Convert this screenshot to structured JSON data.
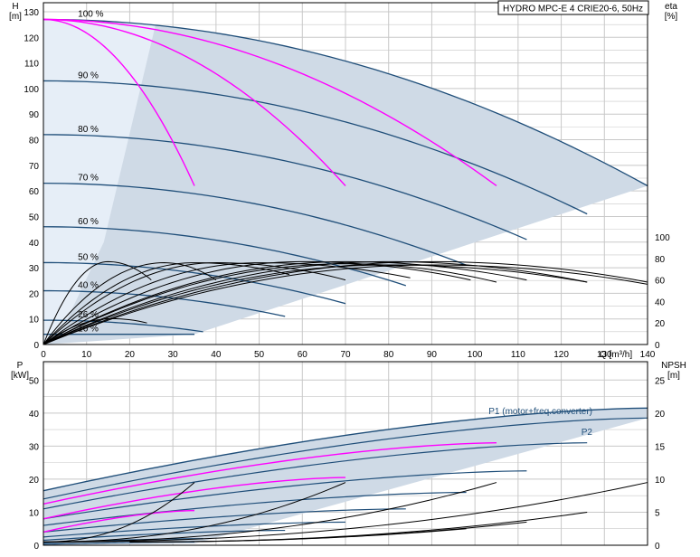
{
  "chart_data": {
    "type": "line",
    "title": "HYDRO MPC-E 4 CRIE20-6, 50Hz",
    "colors": {
      "envelope_fill": "#cfdae6",
      "envelope_fill_light": "#e6eef7",
      "curve": "#1f4e79",
      "highlight": "#ff00ff",
      "eta": "#000000",
      "grid": "#c8c8c8",
      "label_blue": "#1f4e79"
    },
    "top": {
      "xlabel": "Q [m³/h]",
      "ylabel_left_name": "H",
      "ylabel_left_unit": "[m]",
      "ylabel_right_name": "eta",
      "ylabel_right_unit": "[%]",
      "xlim": [
        0,
        140
      ],
      "ylim": [
        0,
        130
      ],
      "eta_lim": [
        0,
        100
      ],
      "x_ticks": [
        0,
        10,
        20,
        30,
        40,
        50,
        60,
        70,
        80,
        90,
        100,
        110,
        120,
        130,
        140
      ],
      "y_ticks": [
        0,
        10,
        20,
        30,
        40,
        50,
        60,
        70,
        80,
        90,
        100,
        110,
        120,
        130
      ],
      "eta_ticks": [
        0,
        20,
        40,
        60,
        80,
        100
      ],
      "speed_labels": [
        {
          "text": "100 %",
          "q": 8,
          "h": 127
        },
        {
          "text": "90 %",
          "q": 8,
          "h": 103
        },
        {
          "text": "80 %",
          "q": 8,
          "h": 82
        },
        {
          "text": "70 %",
          "q": 8,
          "h": 63
        },
        {
          "text": "60 %",
          "q": 8,
          "h": 46
        },
        {
          "text": "50 %",
          "q": 8,
          "h": 32
        },
        {
          "text": "40 %",
          "q": 8,
          "h": 21
        },
        {
          "text": "26 %",
          "q": 8,
          "h": 9.5
        },
        {
          "text": "16 %",
          "q": 8,
          "h": 4
        }
      ],
      "envelope": {
        "shutoff_head": 127,
        "max_speed_end": [
          140,
          62
        ],
        "min_speed_end": [
          35,
          4
        ]
      },
      "speed_curves": [
        {
          "pct": 100,
          "q_end": 140,
          "h0": 127,
          "h_end": 62
        },
        {
          "pct": 90,
          "q_end": 126,
          "h0": 103,
          "h_end": 51
        },
        {
          "pct": 80,
          "q_end": 112,
          "h0": 82,
          "h_end": 41
        },
        {
          "pct": 70,
          "q_end": 98,
          "h0": 63,
          "h_end": 31
        },
        {
          "pct": 60,
          "q_end": 84,
          "h0": 46,
          "h_end": 23
        },
        {
          "pct": 50,
          "q_end": 70,
          "h0": 32,
          "h_end": 16
        },
        {
          "pct": 40,
          "q_end": 56,
          "h0": 21,
          "h_end": 11
        },
        {
          "pct": 26,
          "q_end": 37,
          "h0": 9.5,
          "h_end": 5
        },
        {
          "pct": 16,
          "q_end": 35,
          "h0": 4,
          "h_end": 4
        }
      ],
      "single_pump_curves": [
        {
          "q_end": 35,
          "h_end": 62
        },
        {
          "q_end": 70,
          "h_end": 62
        },
        {
          "q_end": 105,
          "h_end": 62
        }
      ],
      "eta_curves": [
        {
          "q_end": 25,
          "peak_q": 15,
          "peak_eta": 77,
          "end_eta": 60
        },
        {
          "q_end": 40,
          "peak_q": 28,
          "peak_eta": 76,
          "end_eta": 60
        },
        {
          "q_end": 57,
          "peak_q": 35,
          "peak_eta": 76,
          "end_eta": 65
        },
        {
          "q_end": 70,
          "peak_q": 40,
          "peak_eta": 76,
          "end_eta": 60
        },
        {
          "q_end": 85,
          "peak_q": 50,
          "peak_eta": 76,
          "end_eta": 62
        },
        {
          "q_end": 99,
          "peak_q": 60,
          "peak_eta": 77,
          "end_eta": 60
        },
        {
          "q_end": 112,
          "peak_q": 70,
          "peak_eta": 77,
          "end_eta": 60
        },
        {
          "q_end": 126,
          "peak_q": 80,
          "peak_eta": 77,
          "end_eta": 58
        },
        {
          "q_end": 140,
          "peak_q": 90,
          "peak_eta": 77,
          "end_eta": 58
        },
        {
          "q_end": 140,
          "peak_q": 90,
          "peak_eta": 74,
          "end_eta": 56
        },
        {
          "q_end": 126,
          "peak_q": 80,
          "peak_eta": 74,
          "end_eta": 58
        },
        {
          "q_end": 105,
          "peak_q": 70,
          "peak_eta": 75,
          "end_eta": 58
        },
        {
          "q_end": 24,
          "peak_q": 16,
          "peak_eta": 24,
          "end_eta": 20
        }
      ]
    },
    "bottom": {
      "ylabel_left_name": "P",
      "ylabel_left_unit": "[kW]",
      "ylabel_right_name": "NPSH",
      "ylabel_right_unit": "[m]",
      "xlim": [
        0,
        140
      ],
      "ylim": [
        0,
        55
      ],
      "npsh_lim": [
        0,
        27.5
      ],
      "y_ticks": [
        0,
        10,
        20,
        30,
        40,
        50
      ],
      "npsh_ticks": [
        0,
        5,
        10,
        15,
        20,
        25
      ],
      "series_labels": [
        {
          "text": "P1 (motor+freq.converter)",
          "q": 140,
          "p": 43
        },
        {
          "text": "P2",
          "q": 140,
          "p": 37
        }
      ],
      "p1_curve": {
        "q_end": 140,
        "p0": 16.5,
        "p_end": 41.5
      },
      "p2_curve": {
        "q_end": 140,
        "p0": 14,
        "p_end": 38.5
      },
      "power_curves": [
        {
          "q_end": 126,
          "p0": 11,
          "p_end": 31
        },
        {
          "q_end": 112,
          "p0": 8,
          "p_end": 22.5
        },
        {
          "q_end": 98,
          "p0": 6,
          "p_end": 16
        },
        {
          "q_end": 84,
          "p0": 4,
          "p_end": 11
        },
        {
          "q_end": 70,
          "p0": 2.5,
          "p_end": 7
        },
        {
          "q_end": 56,
          "p0": 1.5,
          "p_end": 4.5
        },
        {
          "q_end": 37,
          "p0": 0.7,
          "p_end": 2
        },
        {
          "q_end": 35,
          "p0": 0.3,
          "p_end": 1
        }
      ],
      "highlight_power": [
        {
          "q_end": 105,
          "p0": 12.5,
          "p_end": 31
        },
        {
          "q_end": 70,
          "p0": 8,
          "p_end": 20.5
        },
        {
          "q_end": 35,
          "p0": 4,
          "p_end": 10.5
        }
      ],
      "npsh_curves": [
        {
          "q_start": 0,
          "q_end": 35,
          "n0": 0.5,
          "n_end": 9.5
        },
        {
          "q_start": 0,
          "q_end": 70,
          "n0": 0.5,
          "n_end": 9.5
        },
        {
          "q_start": 0,
          "q_end": 105,
          "n0": 0.5,
          "n_end": 9.5
        },
        {
          "q_start": 0,
          "q_end": 140,
          "n0": 0.5,
          "n_end": 9.5
        },
        {
          "q_start": 20,
          "q_end": 112,
          "n0": 0.5,
          "n_end": 3.5
        },
        {
          "q_start": 20,
          "q_end": 126,
          "n0": 0.5,
          "n_end": 5
        },
        {
          "q_start": 20,
          "q_end": 98,
          "n0": 0.5,
          "n_end": 2.5
        }
      ]
    }
  }
}
